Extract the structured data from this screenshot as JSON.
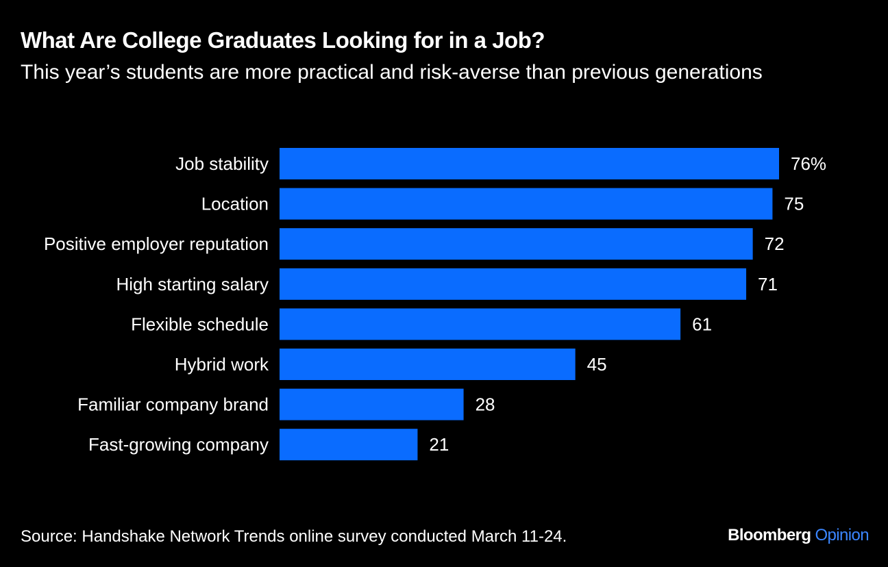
{
  "header": {
    "title": "What Are College Graduates Looking for in a Job?",
    "subtitle": "This year’s students are more practical and risk-averse than previous generations"
  },
  "footer": {
    "source": "Source: Handshake Network Trends online survey conducted March 11-24.",
    "brand_main": "Bloomberg",
    "brand_sub": "Opinion"
  },
  "colors": {
    "background": "#000000",
    "bar": "#0a6cff",
    "text": "#ffffff",
    "brand_accent": "#3b86ff"
  },
  "chart_data": {
    "type": "bar",
    "orientation": "horizontal",
    "categories": [
      "Job stability",
      "Location",
      "Positive employer reputation",
      "High starting salary",
      "Flexible schedule",
      "Hybrid work",
      "Familiar company brand",
      "Fast-growing company"
    ],
    "values": [
      76,
      75,
      72,
      71,
      61,
      45,
      28,
      21
    ],
    "value_labels": [
      "76%",
      "75",
      "72",
      "71",
      "61",
      "45",
      "28",
      "21"
    ],
    "xlim": [
      0,
      76
    ],
    "grid": false,
    "legend": "none"
  }
}
